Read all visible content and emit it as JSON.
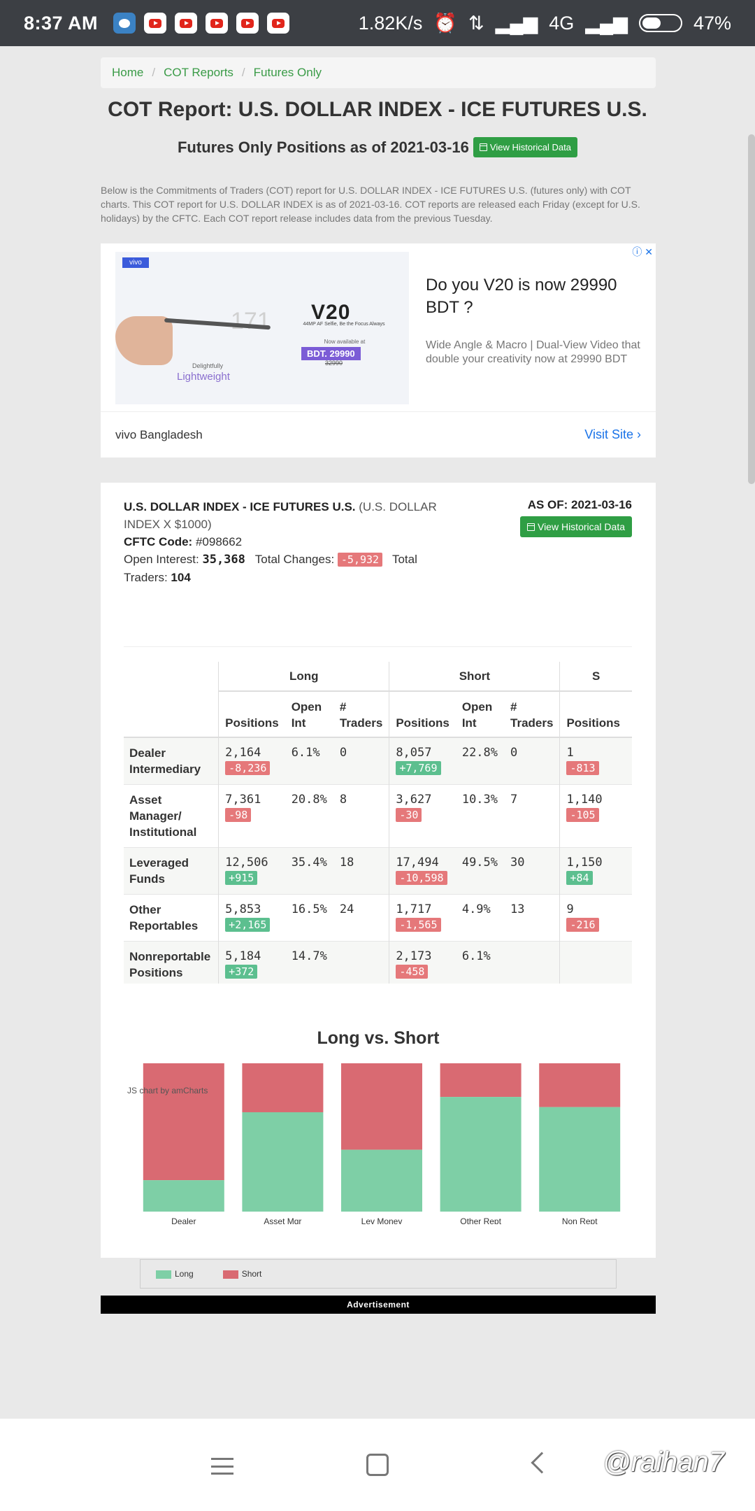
{
  "status_bar": {
    "time": "8:37 AM",
    "speed": "1.82K/s",
    "network": "4G",
    "battery": "47%",
    "battery_level": 0.47
  },
  "breadcrumb": [
    "Home",
    "COT Reports",
    "Futures Only"
  ],
  "title": "COT Report: U.S. DOLLAR INDEX - ICE FUTURES U.S.",
  "subtitle": "Futures Only Positions as of 2021-03-16",
  "view_historical": "View Historical Data",
  "intro": "Below is the Commitments of Traders (COT) report for U.S. DOLLAR INDEX - ICE FUTURES U.S. (futures only) with COT charts. This COT report for U.S. DOLLAR INDEX is as of 2021-03-16. COT reports are released each Friday (except for U.S. holidays) by the CFTC. Each COT report release includes data from the previous Tuesday.",
  "ad": {
    "tag": "vivo",
    "headline": "Do you V20 is now 29990 BDT ?",
    "description": "Wide Angle & Macro | Dual-View Video that double your creativity now at 29990 BDT",
    "brand": "vivo Bangladesh",
    "visit": "Visit Site",
    "img_model": "V20",
    "img_sub": "44MP AF Selfie, Be the Focus Always",
    "img_avail": "Now available at",
    "img_price": "BDT. 29990",
    "img_old": "32990",
    "img_171": "171",
    "img_light1": "Delightfully",
    "img_light2": "Lightweight"
  },
  "report": {
    "name": "U.S. DOLLAR INDEX - ICE FUTURES U.S.",
    "unit": "(U.S. DOLLAR INDEX X $1000)",
    "cftc_label": "CFTC Code:",
    "cftc_code": "#098662",
    "oi_label": "Open Interest:",
    "oi_value": "35,368",
    "changes_label": "Total Changes:",
    "changes_value": "-5,932",
    "traders_label": "Total Traders:",
    "traders_value": "104",
    "asof": "AS OF: 2021-03-16"
  },
  "table": {
    "groups": [
      "Long",
      "Short",
      "S"
    ],
    "sub_headers": [
      "Positions",
      "Open Int",
      "# Traders",
      "Positions",
      "Open Int",
      "# Traders",
      "Positions"
    ],
    "rows": [
      {
        "label": "Dealer Intermediary",
        "long_pos": "2,164",
        "long_chg": "-8,236",
        "long_oi": "6.1%",
        "long_tr": "0",
        "short_pos": "8,057",
        "short_chg": "+7,769",
        "short_oi": "22.8%",
        "short_tr": "0",
        "s_pos": "1",
        "s_chg": "-813"
      },
      {
        "label": "Asset Manager/ Institutional",
        "long_pos": "7,361",
        "long_chg": "-98",
        "long_oi": "20.8%",
        "long_tr": "8",
        "short_pos": "3,627",
        "short_chg": "-30",
        "short_oi": "10.3%",
        "short_tr": "7",
        "s_pos": "1,140",
        "s_chg": "-105"
      },
      {
        "label": "Leveraged Funds",
        "long_pos": "12,506",
        "long_chg": "+915",
        "long_oi": "35.4%",
        "long_tr": "18",
        "short_pos": "17,494",
        "short_chg": "-10,598",
        "short_oi": "49.5%",
        "short_tr": "30",
        "s_pos": "1,150",
        "s_chg": "+84"
      },
      {
        "label": "Other Reportables",
        "long_pos": "5,853",
        "long_chg": "+2,165",
        "long_oi": "16.5%",
        "long_tr": "24",
        "short_pos": "1,717",
        "short_chg": "-1,565",
        "short_oi": "4.9%",
        "short_tr": "13",
        "s_pos": "9",
        "s_chg": "-216"
      },
      {
        "label": "Nonreportable Positions",
        "long_pos": "5,184",
        "long_chg": "+372",
        "long_oi": "14.7%",
        "long_tr": "",
        "short_pos": "2,173",
        "short_chg": "-458",
        "short_oi": "6.1%",
        "short_tr": "",
        "s_pos": "",
        "s_chg": ""
      }
    ]
  },
  "chart_data": {
    "type": "bar",
    "stacked": "100%",
    "title": "Long vs. Short",
    "credit": "JS chart by amCharts",
    "categories": [
      "Dealer",
      "Asset Mgr",
      "Lev Money",
      "Other Rept",
      "Non Rept"
    ],
    "series": [
      {
        "name": "Long",
        "color": "#7ecfa6",
        "values": [
          2164,
          7361,
          12506,
          5853,
          5184
        ]
      },
      {
        "name": "Short",
        "color": "#d96a72",
        "values": [
          8057,
          3627,
          17494,
          1717,
          2173
        ]
      }
    ],
    "legend_position": "bottom"
  },
  "advertisement_label": "Advertisement",
  "watermark": "@raihan7"
}
